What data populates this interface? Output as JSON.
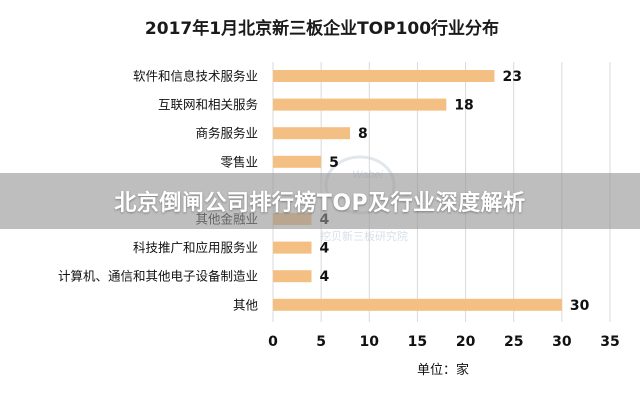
{
  "banner": {
    "text": "北京倒闸公司排行榜TOP及行业深度解析"
  },
  "watermark": {
    "logo_text": "Wabei",
    "sub_text": "挖贝新三板研究院"
  },
  "colors": {
    "bar": "#f3bf82",
    "gridline": "#d9d9d9",
    "text": "#111111"
  },
  "chart_data": {
    "type": "bar",
    "orientation": "horizontal",
    "title": "2017年1月北京新三板企业TOP100行业分布",
    "categories": [
      "软件和信息技术服务业",
      "互联网和相关服务",
      "商务服务业",
      "零售业",
      "",
      "其他金融业",
      "科技推广和应用服务业",
      "计算机、通信和其他电子设备制造业",
      "其他"
    ],
    "values": [
      23,
      18,
      8,
      5,
      null,
      4,
      4,
      4,
      30
    ],
    "xlabel": "单位：家",
    "xlim": [
      0,
      35
    ],
    "xticks": [
      0,
      5,
      10,
      15,
      20,
      25,
      30,
      35
    ],
    "grid": true,
    "legend": "none"
  }
}
